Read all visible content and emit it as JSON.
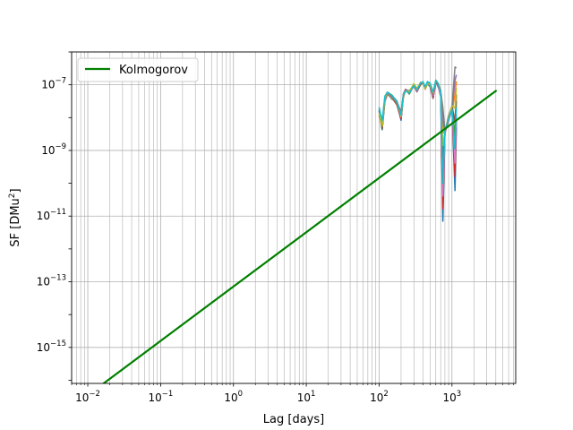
{
  "chart_data": {
    "type": "line",
    "title": "",
    "xlabel": "Lag [days]",
    "ylabel_main": "SF [DMu",
    "ylabel_sup": "2",
    "ylabel_close": "]",
    "xscale": "log",
    "yscale": "log",
    "xlim": [
      0.006,
      7500
    ],
    "ylim": [
      8e-17,
      1e-06
    ],
    "grid": "major and minor",
    "legend": {
      "placement": "upper-left",
      "entries": [
        {
          "label": "Kolmogorov",
          "color": "#008000"
        }
      ]
    },
    "x_ticks": [
      {
        "value": 0.01,
        "base": "10",
        "exp": "−2"
      },
      {
        "value": 0.1,
        "base": "10",
        "exp": "−1"
      },
      {
        "value": 1,
        "base": "10",
        "exp": "0"
      },
      {
        "value": 10,
        "base": "10",
        "exp": "1"
      },
      {
        "value": 100,
        "base": "10",
        "exp": "2"
      },
      {
        "value": 1000,
        "base": "10",
        "exp": "3"
      }
    ],
    "y_ticks": [
      {
        "value": 1e-15,
        "base": "10",
        "exp": "−15"
      },
      {
        "value": 1e-13,
        "base": "10",
        "exp": "−13"
      },
      {
        "value": 1e-11,
        "base": "10",
        "exp": "−11"
      },
      {
        "value": 1e-09,
        "base": "10",
        "exp": "−9"
      },
      {
        "value": 1e-07,
        "base": "10",
        "exp": "−7"
      }
    ],
    "kolmogorov": {
      "color": "#008000",
      "x": [
        0.01,
        4000
      ],
      "y": [
        3.5e-17,
        6.5e-08
      ]
    },
    "sf_series_colors": [
      "#1f77b4",
      "#ff7f0e",
      "#2ca02c",
      "#d62728",
      "#9467bd",
      "#8c564b",
      "#e377c2",
      "#7f7f7f",
      "#bcbd22",
      "#17becf"
    ],
    "sf_profile": {
      "x": [
        100,
        110,
        120,
        130,
        150,
        175,
        200,
        215,
        230,
        260,
        300,
        330,
        370,
        400,
        430,
        460,
        500,
        550,
        600,
        650,
        700,
        750,
        800,
        900,
        1000,
        1100,
        1150
      ],
      "y": [
        1.8e-08,
        6e-09,
        4e-08,
        5.5e-08,
        4.5e-08,
        3e-08,
        1.2e-08,
        5e-08,
        7e-08,
        6e-08,
        1e-07,
        7e-08,
        1.1e-07,
        1.2e-07,
        8e-08,
        1.15e-07,
        1e-07,
        5e-08,
        1.3e-07,
        1e-07,
        6e-08,
        8e-09,
        5e-09,
        1e-08,
        2e-08,
        3e-08,
        1.8e-07
      ],
      "lo": [
        8e-09,
        3e-09,
        2.5e-08,
        4e-08,
        3e-08,
        2e-08,
        6e-09,
        3.5e-08,
        5e-08,
        4.5e-08,
        8e-08,
        5.5e-08,
        9e-08,
        1e-07,
        6.5e-08,
        9e-08,
        8e-08,
        3e-08,
        1e-07,
        7e-08,
        3e-08,
        7e-12,
        2e-09,
        6e-09,
        1.2e-08,
        6e-11,
        5e-09
      ],
      "hi": [
        2.5e-08,
        1e-08,
        5e-08,
        6.5e-08,
        5.5e-08,
        4e-08,
        2e-08,
        6e-08,
        8.5e-08,
        7.5e-08,
        1.2e-07,
        8.5e-08,
        1.3e-07,
        1.4e-07,
        9.5e-08,
        1.35e-07,
        1.25e-07,
        7e-08,
        1.5e-07,
        1.3e-07,
        9e-08,
        2e-08,
        8e-09,
        1.5e-08,
        3e-08,
        3.5e-07,
        3.2e-07
      ]
    }
  }
}
